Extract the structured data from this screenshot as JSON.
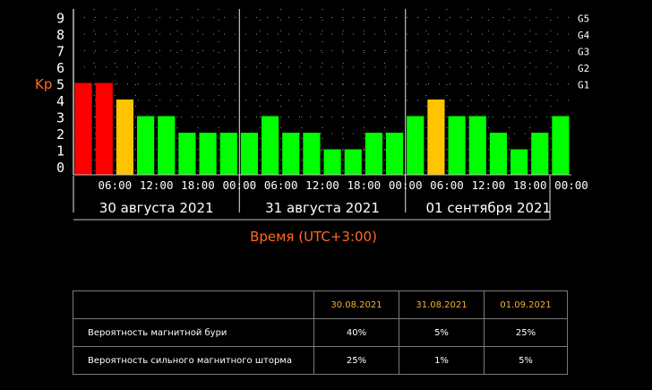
{
  "chart_data": {
    "type": "bar",
    "ylabel": "Kp",
    "xlabel": "Время (UTC+3:00)",
    "ylim": [
      0,
      9
    ],
    "y_ticks": [
      "0",
      "1",
      "2",
      "3",
      "4",
      "5",
      "6",
      "7",
      "8",
      "9"
    ],
    "g_ticks": [
      {
        "label": "G1",
        "kp": 5
      },
      {
        "label": "G2",
        "kp": 6
      },
      {
        "label": "G3",
        "kp": 7
      },
      {
        "label": "G4",
        "kp": 8
      },
      {
        "label": "G5",
        "kp": 9
      }
    ],
    "x_ticks": [
      "06:00",
      "12:00",
      "18:00",
      "00:00",
      "06:00",
      "12:00",
      "18:00",
      "00:00",
      "06:00",
      "12:00",
      "18:00",
      "00:00"
    ],
    "days": [
      "30 августа 2021",
      "31 августа 2021",
      "01 сентября 2021"
    ],
    "values": [
      5,
      5,
      4,
      3,
      3,
      2,
      2,
      2,
      2,
      3,
      2,
      2,
      1,
      1,
      2,
      2,
      3,
      4,
      3,
      3,
      2,
      1,
      2,
      3
    ],
    "colors": {
      "low": "#00ff00",
      "medium": "#ffc400",
      "high": "#ff0000",
      "grid": "#8f8f8f",
      "accent": "#ff6a1f"
    },
    "grid": true
  },
  "table": {
    "headers": [
      "",
      "30.08.2021",
      "31.08.2021",
      "01.09.2021"
    ],
    "rows": [
      {
        "label": "Вероятность магнитной бури",
        "values": [
          "40%",
          "5%",
          "25%"
        ]
      },
      {
        "label": "Вероятность сильного магнитного шторма",
        "values": [
          "25%",
          "1%",
          "5%"
        ]
      }
    ]
  }
}
